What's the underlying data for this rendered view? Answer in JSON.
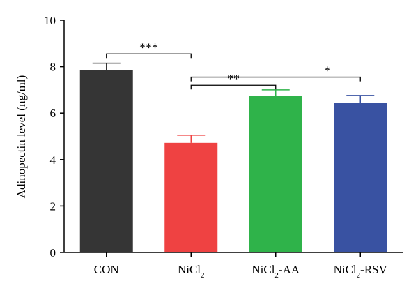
{
  "chart_data": {
    "type": "bar",
    "title": "",
    "xlabel": "",
    "ylabel": "Adinopectin level (ng/ml)",
    "ylim": [
      0,
      10
    ],
    "yticks": [
      0,
      2,
      4,
      6,
      8,
      10
    ],
    "grid": false,
    "legend": "none",
    "categories": [
      {
        "base": "CON",
        "sub": "",
        "suffix": ""
      },
      {
        "base": "NiCl",
        "sub": "2",
        "suffix": ""
      },
      {
        "base": "NiCl",
        "sub": "2",
        "suffix": "-AA"
      },
      {
        "base": "NiCl",
        "sub": "2",
        "suffix": "-RSV"
      }
    ],
    "values": [
      7.85,
      4.72,
      6.75,
      6.43
    ],
    "errors": [
      0.3,
      0.33,
      0.25,
      0.33
    ],
    "colors": [
      "#353535",
      "#ef4242",
      "#2fb34a",
      "#3952a2"
    ],
    "significance": [
      {
        "from": 0,
        "to": 1,
        "label": "***",
        "y": 8.55
      },
      {
        "from": 1,
        "to": 3,
        "label": "*",
        "y": 7.55
      },
      {
        "from": 1,
        "to": 2,
        "label": "**",
        "y": 7.2
      }
    ]
  }
}
